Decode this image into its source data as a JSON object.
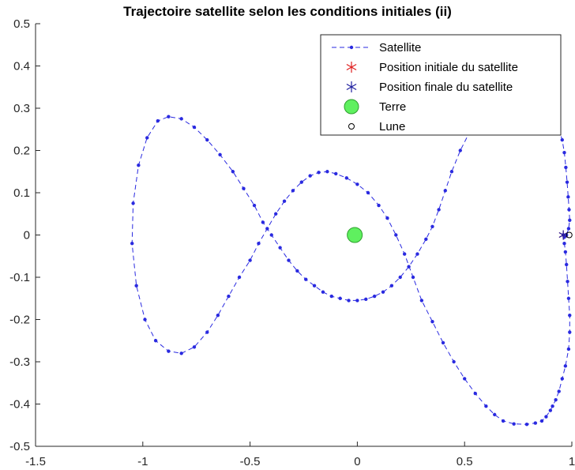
{
  "chart_data": {
    "type": "line",
    "title": "Trajectoire satellite selon les conditions initiales (ii)",
    "xlabel": "",
    "ylabel": "",
    "xlim": [
      -1.5,
      1.0
    ],
    "ylim": [
      -0.5,
      0.5
    ],
    "xticks": [
      "-1.5",
      "-1",
      "-0.5",
      "0",
      "0.5",
      "1"
    ],
    "yticks": [
      "0.5",
      "0.4",
      "0.3",
      "0.2",
      "0.1",
      "0",
      "-0.1",
      "-0.2",
      "-0.3",
      "-0.4",
      "-0.5"
    ],
    "xtick_values": [
      -1.5,
      -1,
      -0.5,
      0,
      0.5,
      1
    ],
    "ytick_values": [
      0.5,
      0.4,
      0.3,
      0.2,
      0.1,
      0,
      -0.1,
      -0.2,
      -0.3,
      -0.4,
      -0.5
    ],
    "grid": false,
    "legend_position": "top-right",
    "legend": [
      "Satellite",
      "Position initiale du satellite",
      "Position finale du satellite",
      "Terre",
      "Lune"
    ],
    "colors": {
      "satellite": "#2a2ae0",
      "initial": "#e02020",
      "final": "#2020a0",
      "earth_fill": "#5ff05f",
      "earth_edge": "#2ea02e",
      "moon": "#000000",
      "axis": "#262626"
    },
    "series": [
      {
        "name": "Satellite",
        "style": "dashed-dots",
        "x": [
          0.96,
          0.965,
          0.97,
          0.975,
          0.98,
          0.985,
          0.99,
          0.99,
          0.985,
          0.97,
          0.955,
          0.94,
          0.925,
          0.91,
          0.9,
          0.88,
          0.86,
          0.83,
          0.79,
          0.73,
          0.68,
          0.64,
          0.6,
          0.55,
          0.5,
          0.45,
          0.4,
          0.35,
          0.3,
          0.26,
          0.22,
          0.18,
          0.14,
          0.1,
          0.05,
          0.0,
          -0.05,
          -0.1,
          -0.14,
          -0.18,
          -0.22,
          -0.26,
          -0.3,
          -0.34,
          -0.38,
          -0.42,
          -0.46,
          -0.5,
          -0.55,
          -0.6,
          -0.65,
          -0.7,
          -0.76,
          -0.82,
          -0.88,
          -0.94,
          -0.99,
          -1.03,
          -1.05,
          -1.045,
          -1.02,
          -0.98,
          -0.93,
          -0.88,
          -0.82,
          -0.76,
          -0.7,
          -0.64,
          -0.58,
          -0.53,
          -0.48,
          -0.44,
          -0.4,
          -0.36,
          -0.32,
          -0.28,
          -0.24,
          -0.2,
          -0.16,
          -0.12,
          -0.08,
          -0.04,
          0.0,
          0.04,
          0.08,
          0.12,
          0.16,
          0.2,
          0.24,
          0.28,
          0.32,
          0.35,
          0.38,
          0.41,
          0.44,
          0.48,
          0.52,
          0.56,
          0.6,
          0.65,
          0.7,
          0.75,
          0.8,
          0.85,
          0.88,
          0.9,
          0.92,
          0.94,
          0.955,
          0.965,
          0.972,
          0.978,
          0.983,
          0.987,
          0.99,
          0.985,
          0.975,
          0.965,
          0.96
        ],
        "y": [
          0.0,
          -0.02,
          -0.04,
          -0.07,
          -0.11,
          -0.15,
          -0.19,
          -0.23,
          -0.27,
          -0.31,
          -0.34,
          -0.37,
          -0.39,
          -0.405,
          -0.415,
          -0.43,
          -0.44,
          -0.445,
          -0.448,
          -0.447,
          -0.44,
          -0.425,
          -0.405,
          -0.375,
          -0.34,
          -0.3,
          -0.255,
          -0.205,
          -0.155,
          -0.1,
          -0.045,
          0.0,
          0.04,
          0.07,
          0.1,
          0.12,
          0.135,
          0.145,
          0.15,
          0.148,
          0.14,
          0.125,
          0.105,
          0.08,
          0.05,
          0.015,
          -0.02,
          -0.06,
          -0.1,
          -0.145,
          -0.19,
          -0.23,
          -0.265,
          -0.28,
          -0.275,
          -0.25,
          -0.2,
          -0.12,
          -0.02,
          0.075,
          0.165,
          0.23,
          0.27,
          0.28,
          0.275,
          0.255,
          0.225,
          0.19,
          0.15,
          0.11,
          0.07,
          0.03,
          0.0,
          -0.03,
          -0.06,
          -0.085,
          -0.105,
          -0.12,
          -0.135,
          -0.145,
          -0.15,
          -0.155,
          -0.155,
          -0.152,
          -0.145,
          -0.135,
          -0.12,
          -0.1,
          -0.075,
          -0.045,
          -0.01,
          0.02,
          0.06,
          0.105,
          0.15,
          0.2,
          0.24,
          0.275,
          0.305,
          0.325,
          0.335,
          0.335,
          0.33,
          0.315,
          0.3,
          0.285,
          0.27,
          0.25,
          0.225,
          0.195,
          0.16,
          0.125,
          0.09,
          0.06,
          0.035,
          0.015,
          0.0,
          -0.005,
          0.0
        ]
      }
    ],
    "markers": {
      "initial_position": {
        "label": "Position initiale du satellite",
        "x": 0.96,
        "y": 0.0
      },
      "final_position": {
        "label": "Position finale du satellite",
        "x": 0.96,
        "y": 0.0
      },
      "earth": {
        "label": "Terre",
        "x": -0.012,
        "y": 0.0
      },
      "moon": {
        "label": "Lune",
        "x": 0.988,
        "y": 0.0
      }
    }
  }
}
